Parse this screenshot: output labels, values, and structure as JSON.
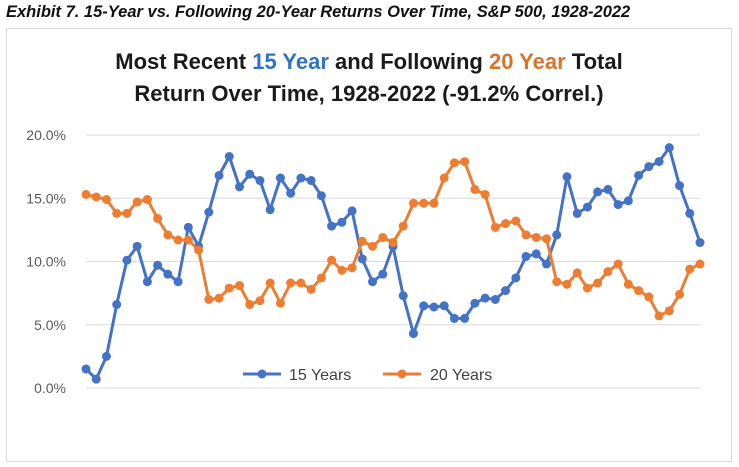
{
  "exhibit_title": "Exhibit 7. 15-Year vs. Following 20-Year Returns Over Time, S&P 500, 1928-2022",
  "title": {
    "part1": "Most Recent ",
    "part2": "15 Year",
    "part3": " and Following ",
    "part4": "20 Year",
    "part5": " Total",
    "line2": "Return Over Time, 1928-2022 (-91.2% Correl.)"
  },
  "colors": {
    "series_15": "#4472c4",
    "series_20": "#ed7d31",
    "title_blue": "#2f73c6",
    "title_orange": "#d9732a"
  },
  "chart_data": {
    "type": "line",
    "title": "Most Recent 15 Year and Following 20 Year Total Return Over Time, 1928-2022 (-91.2% Correl.)",
    "ylim": [
      0,
      0.2
    ],
    "yticks": [
      "0.0%",
      "5.0%",
      "10.0%",
      "15.0%",
      "20.0%"
    ],
    "ytick_values": [
      0,
      0.05,
      0.1,
      0.15,
      0.2
    ],
    "grid": "horizontal",
    "legend_position": "bottom",
    "series": [
      {
        "name": "15 Years",
        "color": "#4472c4",
        "values": [
          0.015,
          0.007,
          0.025,
          0.066,
          0.101,
          0.112,
          0.084,
          0.097,
          0.09,
          0.084,
          0.127,
          0.112,
          0.139,
          0.168,
          0.183,
          0.159,
          0.169,
          0.164,
          0.141,
          0.166,
          0.154,
          0.166,
          0.164,
          0.152,
          0.128,
          0.131,
          0.14,
          0.102,
          0.084,
          0.09,
          0.112,
          0.073,
          0.043,
          0.065,
          0.064,
          0.065,
          0.055,
          0.055,
          0.067,
          0.071,
          0.07,
          0.077,
          0.087,
          0.104,
          0.106,
          0.098,
          0.121,
          0.167,
          0.138,
          0.143,
          0.155,
          0.157,
          0.145,
          0.148,
          0.168,
          0.175,
          0.179,
          0.19,
          0.16,
          0.138,
          0.115
        ]
      },
      {
        "name": "20 Years",
        "color": "#ed7d31",
        "values": [
          0.153,
          0.151,
          0.149,
          0.138,
          0.138,
          0.147,
          0.149,
          0.134,
          0.121,
          0.117,
          0.117,
          0.109,
          0.07,
          0.071,
          0.079,
          0.081,
          0.066,
          0.069,
          0.083,
          0.067,
          0.083,
          0.083,
          0.078,
          0.087,
          0.101,
          0.093,
          0.095,
          0.116,
          0.112,
          0.119,
          0.115,
          0.128,
          0.146,
          0.146,
          0.146,
          0.166,
          0.178,
          0.179,
          0.157,
          0.153,
          0.127,
          0.13,
          0.132,
          0.121,
          0.119,
          0.118,
          0.084,
          0.082,
          0.091,
          0.079,
          0.083,
          0.092,
          0.098,
          0.082,
          0.077,
          0.072,
          0.057,
          0.061,
          0.074,
          0.094,
          0.098
        ]
      }
    ]
  }
}
